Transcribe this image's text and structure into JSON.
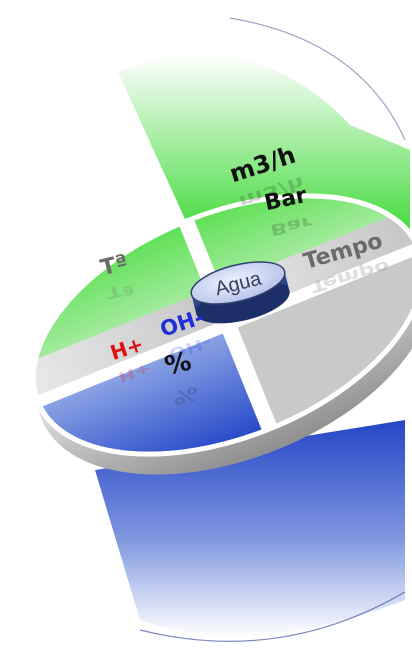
{
  "hub": {
    "label": "Agua"
  },
  "labels": {
    "flow": "m3/h",
    "pressure": "Bar",
    "temperature": "Tª",
    "time": "Tempo",
    "hydroxide": "OH-",
    "hydrogen": "H+",
    "percent": "%"
  },
  "colors": {
    "green": "#2fd12a",
    "blue": "#1d3fc4",
    "grey": "#cfcfcf",
    "hydroxide_text": "#1f2fd8",
    "hydrogen_text": "#e01010",
    "hub_fill": "#bcc8ea",
    "hub_text": "#3a3f5a"
  }
}
